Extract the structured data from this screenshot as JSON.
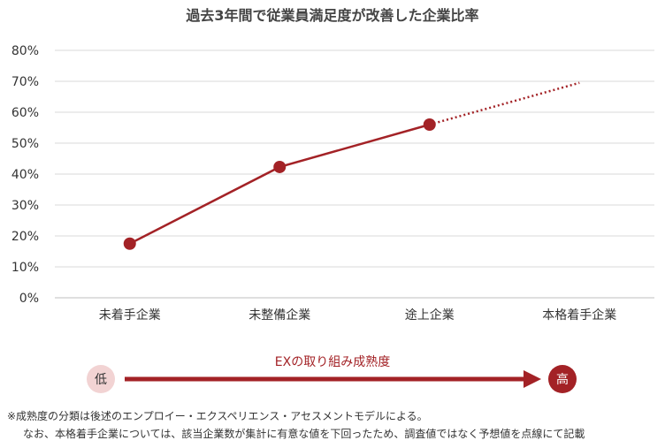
{
  "colors": {
    "series": "#a32226",
    "axis": "#bfbfbf",
    "grid": "#d9d9d9",
    "low_circle": "#f2d3d3",
    "high_circle": "#a32226"
  },
  "chart_data": {
    "type": "line",
    "title": "過去3年間で従業員満足度が改善した企業比率",
    "categories": [
      "未着手企業",
      "未整備企業",
      "途上企業",
      "本格着手企業"
    ],
    "series": [
      {
        "values": [
          17.5,
          42.3,
          56.0,
          69.5
        ],
        "estimated_last_point": true
      }
    ],
    "ylim": [
      0,
      80
    ],
    "ytick_values": [
      0,
      10,
      20,
      30,
      40,
      50,
      60,
      70,
      80
    ],
    "ytick_labels": [
      "0%",
      "10%",
      "20%",
      "30%",
      "40%",
      "50%",
      "60%",
      "70%",
      "80%"
    ],
    "grid": true,
    "legend": "none"
  },
  "maturity": {
    "label": "EXの取り組み成熟度",
    "low": "低",
    "high": "高"
  },
  "footnote": {
    "line1": "※成熟度の分類は後述のエンプロイー・エクスペリエンス・アセスメントモデルによる。",
    "line2": "なお、本格着手企業については、該当企業数が集計に有意な値を下回ったため、調査値ではなく予想値を点線にて記載"
  }
}
